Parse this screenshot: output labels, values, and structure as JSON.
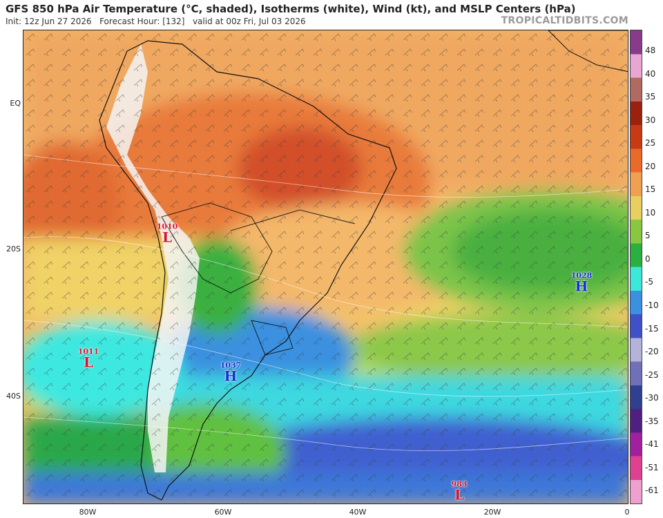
{
  "header": {
    "title": "GFS 850 hPa Air Temperature (°C, shaded), Isotherms (white), Wind (kt), and MSLP Centers (hPa)",
    "init": "Init: 12z Jun 27 2026",
    "forecast_hour": "Forecast Hour: [132]",
    "valid": "valid at 00z Fri, Jul 03 2026",
    "brand": "TROPICALTIDBITS.COM"
  },
  "axes": {
    "lat_labels": [
      "EQ",
      "20S",
      "40S"
    ],
    "lon_labels": [
      "80W",
      "60W",
      "40W",
      "20W",
      "0"
    ]
  },
  "colorbar": {
    "labels": [
      "48",
      "40",
      "35",
      "30",
      "25",
      "20",
      "15",
      "10",
      "5",
      "0",
      "-5",
      "-10",
      "-15",
      "-20",
      "-25",
      "-30",
      "-35",
      "-41",
      "-51",
      "-61"
    ],
    "colors": [
      "#8a3a8a",
      "#e9a6d2",
      "#b06a60",
      "#9a2010",
      "#c83a14",
      "#ea6a2a",
      "#f0a050",
      "#e8d060",
      "#88c840",
      "#2ab040",
      "#3ce8d8",
      "#3c90e0",
      "#4050c8",
      "#b4b4d8",
      "#7070b8",
      "#304090",
      "#502080",
      "#a020a0",
      "#e04090",
      "#f0a0d0"
    ]
  },
  "pressure_centers": [
    {
      "type": "low",
      "value": "1010",
      "letter": "L"
    },
    {
      "type": "low",
      "value": "1011",
      "letter": "L"
    },
    {
      "type": "high",
      "value": "1037",
      "letter": "H"
    },
    {
      "type": "high",
      "value": "1028",
      "letter": "H"
    },
    {
      "type": "low",
      "value": "983",
      "letter": "L"
    }
  ]
}
